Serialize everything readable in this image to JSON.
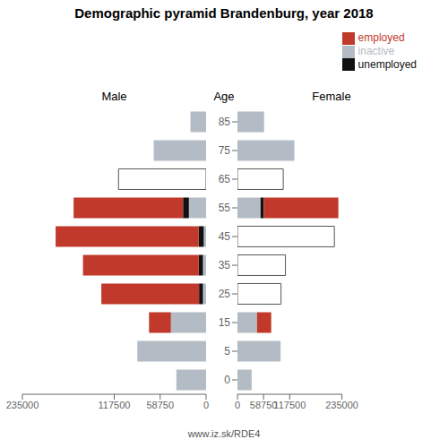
{
  "title": "Demographic pyramid Brandenburg, year 2018",
  "annotations": [
    "www.iz.sk/RDE4"
  ],
  "chart_data": [
    {
      "type": "bar",
      "title": "Male",
      "orientation": "horizontal",
      "stacked": true,
      "tick_labels": "x",
      "categories": [
        0,
        5,
        15,
        25,
        35,
        45,
        55,
        65,
        75,
        85
      ],
      "series": [
        {
          "name": "inactive",
          "color": "#b3bcc4",
          "values": [
            38000,
            88000,
            45000,
            4000,
            4000,
            3000,
            22000,
            0,
            67000,
            20000
          ]
        },
        {
          "name": "unemployed",
          "color": "#111111",
          "values": [
            0,
            0,
            0,
            5000,
            5500,
            6500,
            7500,
            0,
            0,
            0
          ]
        },
        {
          "name": "employed",
          "color": "#c0392b",
          "values": [
            0,
            0,
            28000,
            125000,
            148000,
            183000,
            140000,
            0,
            0,
            0
          ]
        },
        {
          "color": "#ffffff",
          "values": [
            0,
            0,
            0,
            0,
            0,
            0,
            0,
            112000,
            0,
            0
          ]
        }
      ],
      "xlim": [
        0,
        235000
      ],
      "xticks": [
        0,
        58750,
        117500,
        235000
      ]
    },
    {
      "type": "bar",
      "title": "Female",
      "ylabel": "Age",
      "orientation": "horizontal",
      "stacked": true,
      "legend": "upper right",
      "categories": [
        0,
        5,
        15,
        25,
        35,
        45,
        55,
        65,
        75,
        85
      ],
      "series": [
        {
          "name": "inactive",
          "color": "#b3bcc4",
          "values": [
            32000,
            97000,
            44000,
            0,
            0,
            0,
            52000,
            0,
            128000,
            60000
          ]
        },
        {
          "name": "unemployed",
          "color": "#111111",
          "values": [
            0,
            0,
            0,
            0,
            0,
            0,
            7000,
            0,
            0,
            0
          ]
        },
        {
          "name": "employed",
          "color": "#c0392b",
          "values": [
            0,
            0,
            32000,
            0,
            0,
            0,
            168000,
            0,
            0,
            0
          ]
        },
        {
          "color": "#ffffff",
          "values": [
            0,
            0,
            0,
            98000,
            108000,
            218000,
            0,
            103000,
            0,
            0
          ]
        }
      ],
      "xlim": [
        0,
        235000
      ],
      "xticks": [
        0,
        58750,
        117500,
        235000
      ]
    }
  ]
}
